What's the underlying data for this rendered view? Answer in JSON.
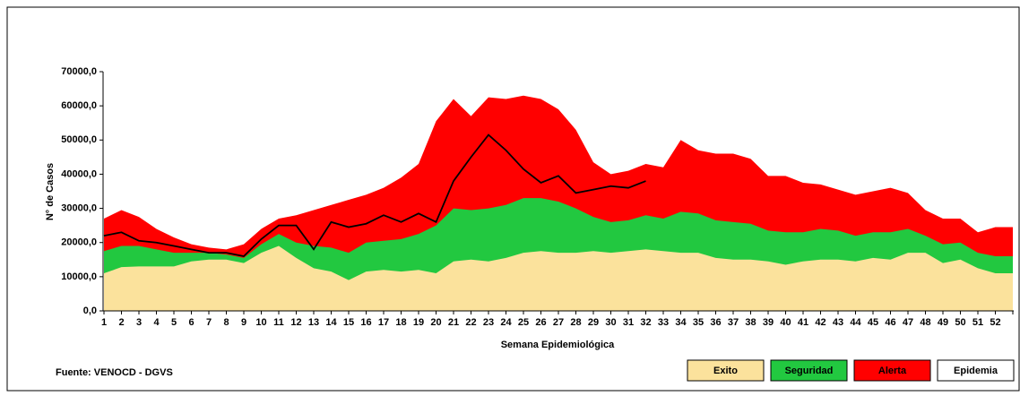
{
  "chart_data": {
    "type": "area",
    "y_label": "N° de Casos",
    "x_label": "Semana Epidemiológica",
    "source": "Fuente: VENOCD - DGVS",
    "categories": [
      "1",
      "2",
      "3",
      "4",
      "5",
      "6",
      "7",
      "8",
      "9",
      "10",
      "11",
      "12",
      "13",
      "14",
      "15",
      "16",
      "17",
      "18",
      "19",
      "20",
      "21",
      "22",
      "23",
      "24",
      "25",
      "26",
      "27",
      "28",
      "29",
      "30",
      "31",
      "32",
      "33",
      "34",
      "35",
      "36",
      "37",
      "38",
      "39",
      "40",
      "41",
      "42",
      "43",
      "44",
      "45",
      "46",
      "47",
      "48",
      "49",
      "50",
      "51",
      "52",
      null
    ],
    "ylim": [
      0,
      70000
    ],
    "yticks": [
      {
        "value": 0,
        "label": "0,0"
      },
      {
        "value": 10000,
        "label": "10000,0"
      },
      {
        "value": 20000,
        "label": "20000,0"
      },
      {
        "value": 30000,
        "label": "30000,0"
      },
      {
        "value": 40000,
        "label": "40000,0"
      },
      {
        "value": 50000,
        "label": "50000,0"
      },
      {
        "value": 60000,
        "label": "60000,0"
      },
      {
        "value": 70000,
        "label": "70000,0"
      }
    ],
    "series": [
      {
        "name": "Exito",
        "color": "#fbe29c",
        "values": [
          11000,
          12800,
          13000,
          13000,
          13000,
          14500,
          15000,
          15000,
          14000,
          17000,
          19000,
          15500,
          12500,
          11500,
          9000,
          11500,
          12000,
          11500,
          12000,
          11000,
          14500,
          15000,
          14500,
          15500,
          17000,
          17500,
          17000,
          17000,
          17500,
          17000,
          17500,
          18000,
          17500,
          17000,
          17000,
          15500,
          15000,
          15000,
          14500,
          13500,
          14500,
          15000,
          15000,
          14500,
          15500,
          15000,
          17000,
          17000,
          14000,
          15000,
          12500,
          11000,
          11000
        ]
      },
      {
        "name": "Seguridad",
        "color": "#22c840",
        "values": [
          17500,
          19000,
          19000,
          18000,
          17000,
          17000,
          17000,
          16500,
          15500,
          19500,
          22500,
          20000,
          19000,
          18500,
          17000,
          20000,
          20500,
          21000,
          22500,
          25000,
          30000,
          29500,
          30000,
          31000,
          33000,
          33000,
          32000,
          30000,
          27500,
          26000,
          26500,
          28000,
          27000,
          29000,
          28500,
          26500,
          26000,
          25500,
          23500,
          23000,
          23000,
          24000,
          23500,
          22000,
          23000,
          23000,
          24000,
          22000,
          19500,
          20000,
          17000,
          16000,
          16000
        ]
      },
      {
        "name": "Alerta",
        "color": "#ff0000",
        "values": [
          27000,
          29500,
          27500,
          24000,
          21500,
          19500,
          18500,
          18000,
          19500,
          24000,
          27000,
          28000,
          29500,
          31000,
          32500,
          34000,
          36000,
          39000,
          43000,
          55500,
          62000,
          57000,
          62500,
          62000,
          63000,
          62000,
          59000,
          53000,
          43500,
          40000,
          41000,
          43000,
          42000,
          50000,
          47000,
          46000,
          46000,
          44500,
          39500,
          39500,
          37500,
          37000,
          35500,
          34000,
          35000,
          36000,
          34500,
          29500,
          27000,
          27000,
          23000,
          24500,
          24500
        ]
      }
    ],
    "line": {
      "color": "#000000",
      "values": [
        22000,
        23000,
        20500,
        20000,
        19000,
        18000,
        17000,
        17000,
        16000,
        21000,
        25000,
        25000,
        18000,
        26000,
        24500,
        25500,
        28000,
        26000,
        28500,
        26000,
        38000,
        45000,
        51500,
        47000,
        41500,
        37500,
        39500,
        34500,
        35500,
        36500,
        36000,
        38000,
        null,
        null,
        null,
        null,
        null,
        null,
        null,
        null,
        null,
        null,
        null,
        null,
        null,
        null,
        null,
        null,
        null,
        null,
        null,
        null,
        null
      ]
    },
    "legend_extra": {
      "name": "Epidemia",
      "color": "#ffffff"
    }
  }
}
